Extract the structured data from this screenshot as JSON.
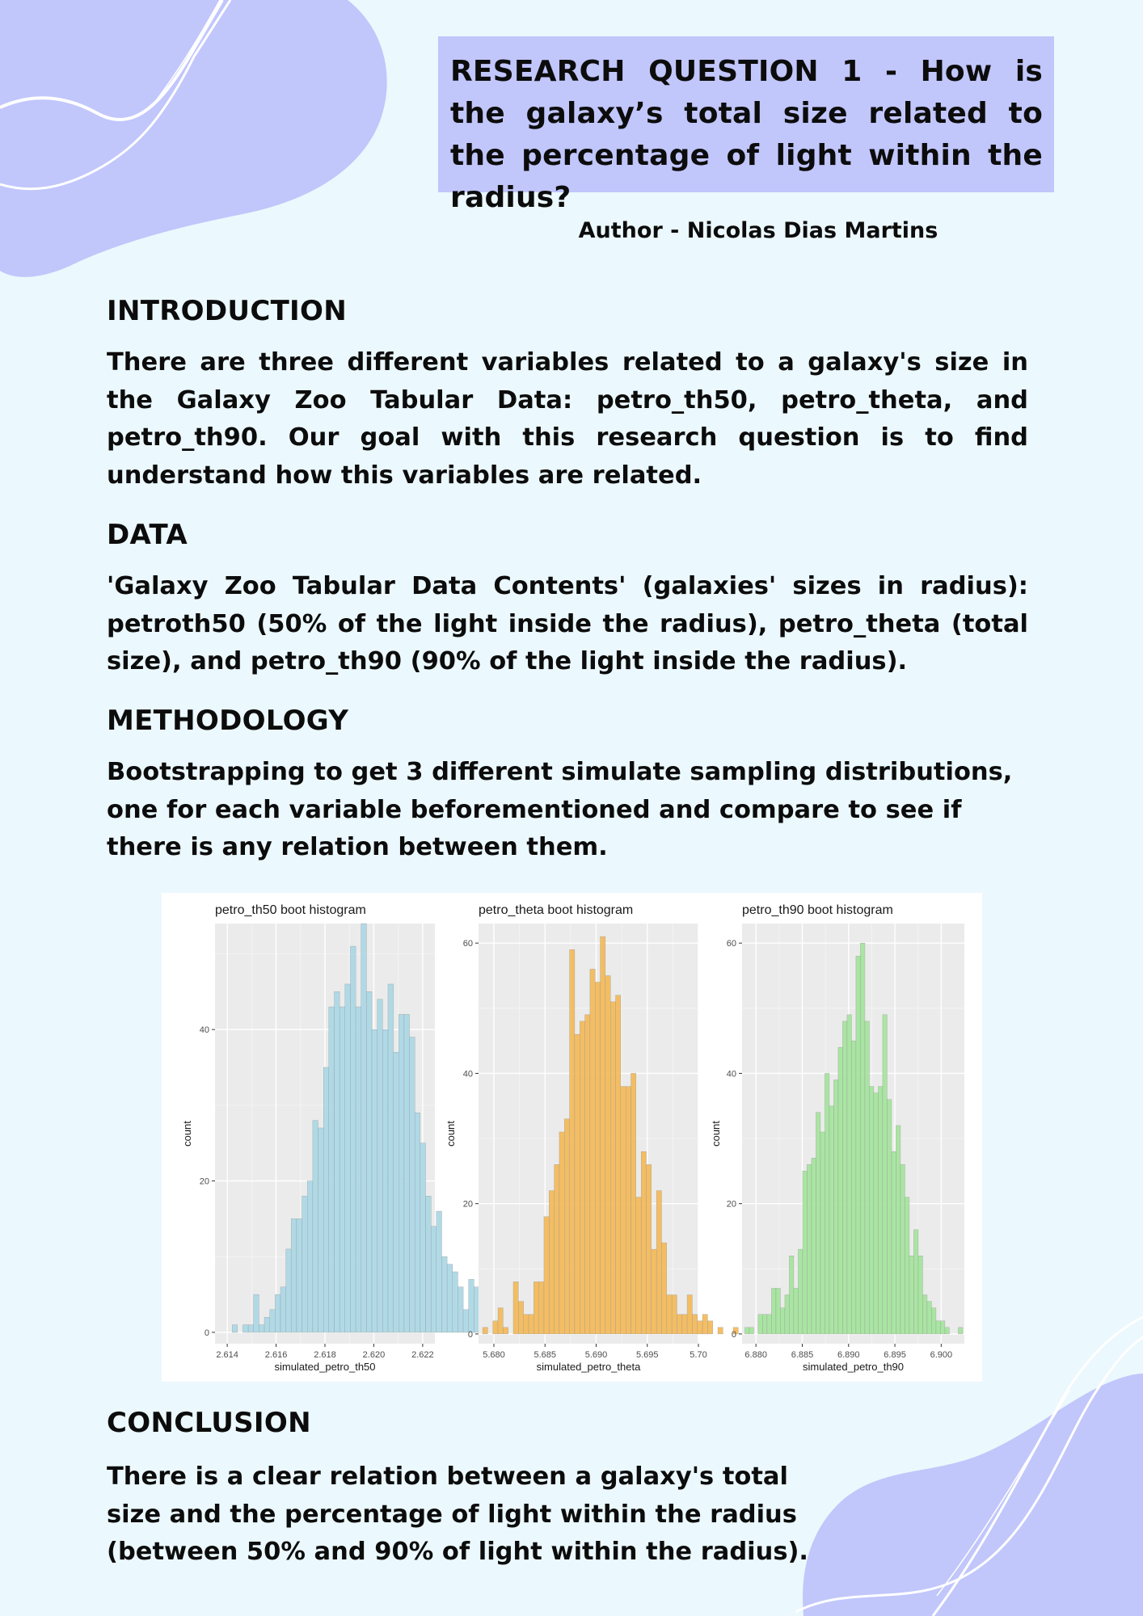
{
  "title": "RESEARCH QUESTION 1 - How is the galaxy’s total size related to the percentage of light within the radius?",
  "author": "Author - Nicolas Dias Martins",
  "sections": {
    "introduction": {
      "heading": "INTRODUCTION",
      "text": "There are three different variables related to a galaxy's size in the Galaxy Zoo Tabular Data: petro_th50, petro_theta, and petro_th90. Our goal with this research question is to find understand how this variables are related."
    },
    "data": {
      "heading": "DATA",
      "text": "'Galaxy Zoo Tabular Data Contents' (galaxies' sizes in radius): petroth50 (50% of the light inside the radius), petro_theta (total size), and petro_th90 (90% of the light inside the radius)."
    },
    "methodology": {
      "heading": "METHODOLOGY",
      "text": "Bootstrapping to get 3 different simulate sampling distributions, one for each variable beforementioned and compare to see if there is any relation between them."
    },
    "conclusion": {
      "heading": "CONCLUSION",
      "text": "There is a clear relation between a galaxy's total size and the percentage of light within the radius (between 50% and 90% of light within the radius)."
    }
  },
  "colors": {
    "background": "#ebf8fd",
    "blob": "#c1c6fb",
    "title_box": "#c1c6fb"
  },
  "chart_data": [
    {
      "type": "bar",
      "title": "petro_th50 boot histogram",
      "xlabel": "simulated_petro_th50",
      "ylabel": "count",
      "color": "#add8e6",
      "xlim": [
        2.6135,
        2.6225
      ],
      "ylim": [
        -1.5,
        54
      ],
      "xticks": [
        2.614,
        2.616,
        2.618,
        2.62,
        2.622
      ],
      "xtick_labels": [
        "2.614",
        "2.616",
        "2.618",
        "2.620",
        "2.622"
      ],
      "yticks": [
        0,
        20,
        40
      ],
      "bins_start": 2.6142,
      "bin_width": 0.00022,
      "counts": [
        1,
        0,
        1,
        1,
        5,
        1,
        2,
        3,
        5,
        6,
        11,
        15,
        15,
        18,
        20,
        28,
        27,
        35,
        43,
        45,
        43,
        46,
        51,
        43,
        54,
        45,
        40,
        44,
        40,
        46,
        37,
        42,
        42,
        39,
        29,
        25,
        18,
        14,
        16,
        10,
        9,
        8,
        6,
        3,
        7,
        6,
        0,
        1
      ]
    },
    {
      "type": "bar",
      "title": "petro_theta boot histogram",
      "xlabel": "simulated_petro_theta",
      "ylabel": "count",
      "color": "#f3bb5c",
      "xlim": [
        5.6785,
        5.7
      ],
      "ylim": [
        -1.5,
        63
      ],
      "xticks": [
        5.68,
        5.685,
        5.69,
        5.695,
        5.7
      ],
      "xtick_labels": [
        "5.680",
        "5.685",
        "5.690",
        "5.695",
        "5.70"
      ],
      "yticks": [
        0,
        20,
        40,
        60
      ],
      "bins_start": 5.6789,
      "bin_width": 0.0005,
      "counts": [
        1,
        0,
        2,
        4,
        1,
        0,
        8,
        5,
        3,
        3,
        8,
        8,
        18,
        22,
        26,
        31,
        33,
        59,
        46,
        48,
        49,
        56,
        54,
        61,
        55,
        51,
        52,
        38,
        38,
        40,
        21,
        28,
        26,
        13,
        22,
        14,
        6,
        6,
        3,
        3,
        6,
        3,
        2,
        3,
        2,
        0,
        1,
        0,
        0,
        1
      ]
    },
    {
      "type": "bar",
      "title": "petro_th90 boot histogram",
      "xlabel": "simulated_petro_th90",
      "ylabel": "count",
      "color": "#a5e59e",
      "xlim": [
        6.8785,
        6.9025
      ],
      "ylim": [
        -1.5,
        63
      ],
      "xticks": [
        6.88,
        6.885,
        6.89,
        6.895,
        6.9
      ],
      "xtick_labels": [
        "6.880",
        "6.885",
        "6.890",
        "6.895",
        "6.900"
      ],
      "yticks": [
        0,
        20,
        40,
        60
      ],
      "bins_start": 6.8788,
      "bin_width": 0.00048,
      "counts": [
        1,
        1,
        0,
        3,
        3,
        3,
        7,
        7,
        4,
        6,
        12,
        7,
        13,
        25,
        26,
        27,
        34,
        31,
        40,
        35,
        39,
        44,
        48,
        49,
        45,
        58,
        60,
        48,
        38,
        37,
        38,
        49,
        36,
        28,
        32,
        26,
        21,
        12,
        16,
        12,
        6,
        5,
        4,
        2,
        2,
        1,
        0,
        0,
        1
      ]
    }
  ]
}
